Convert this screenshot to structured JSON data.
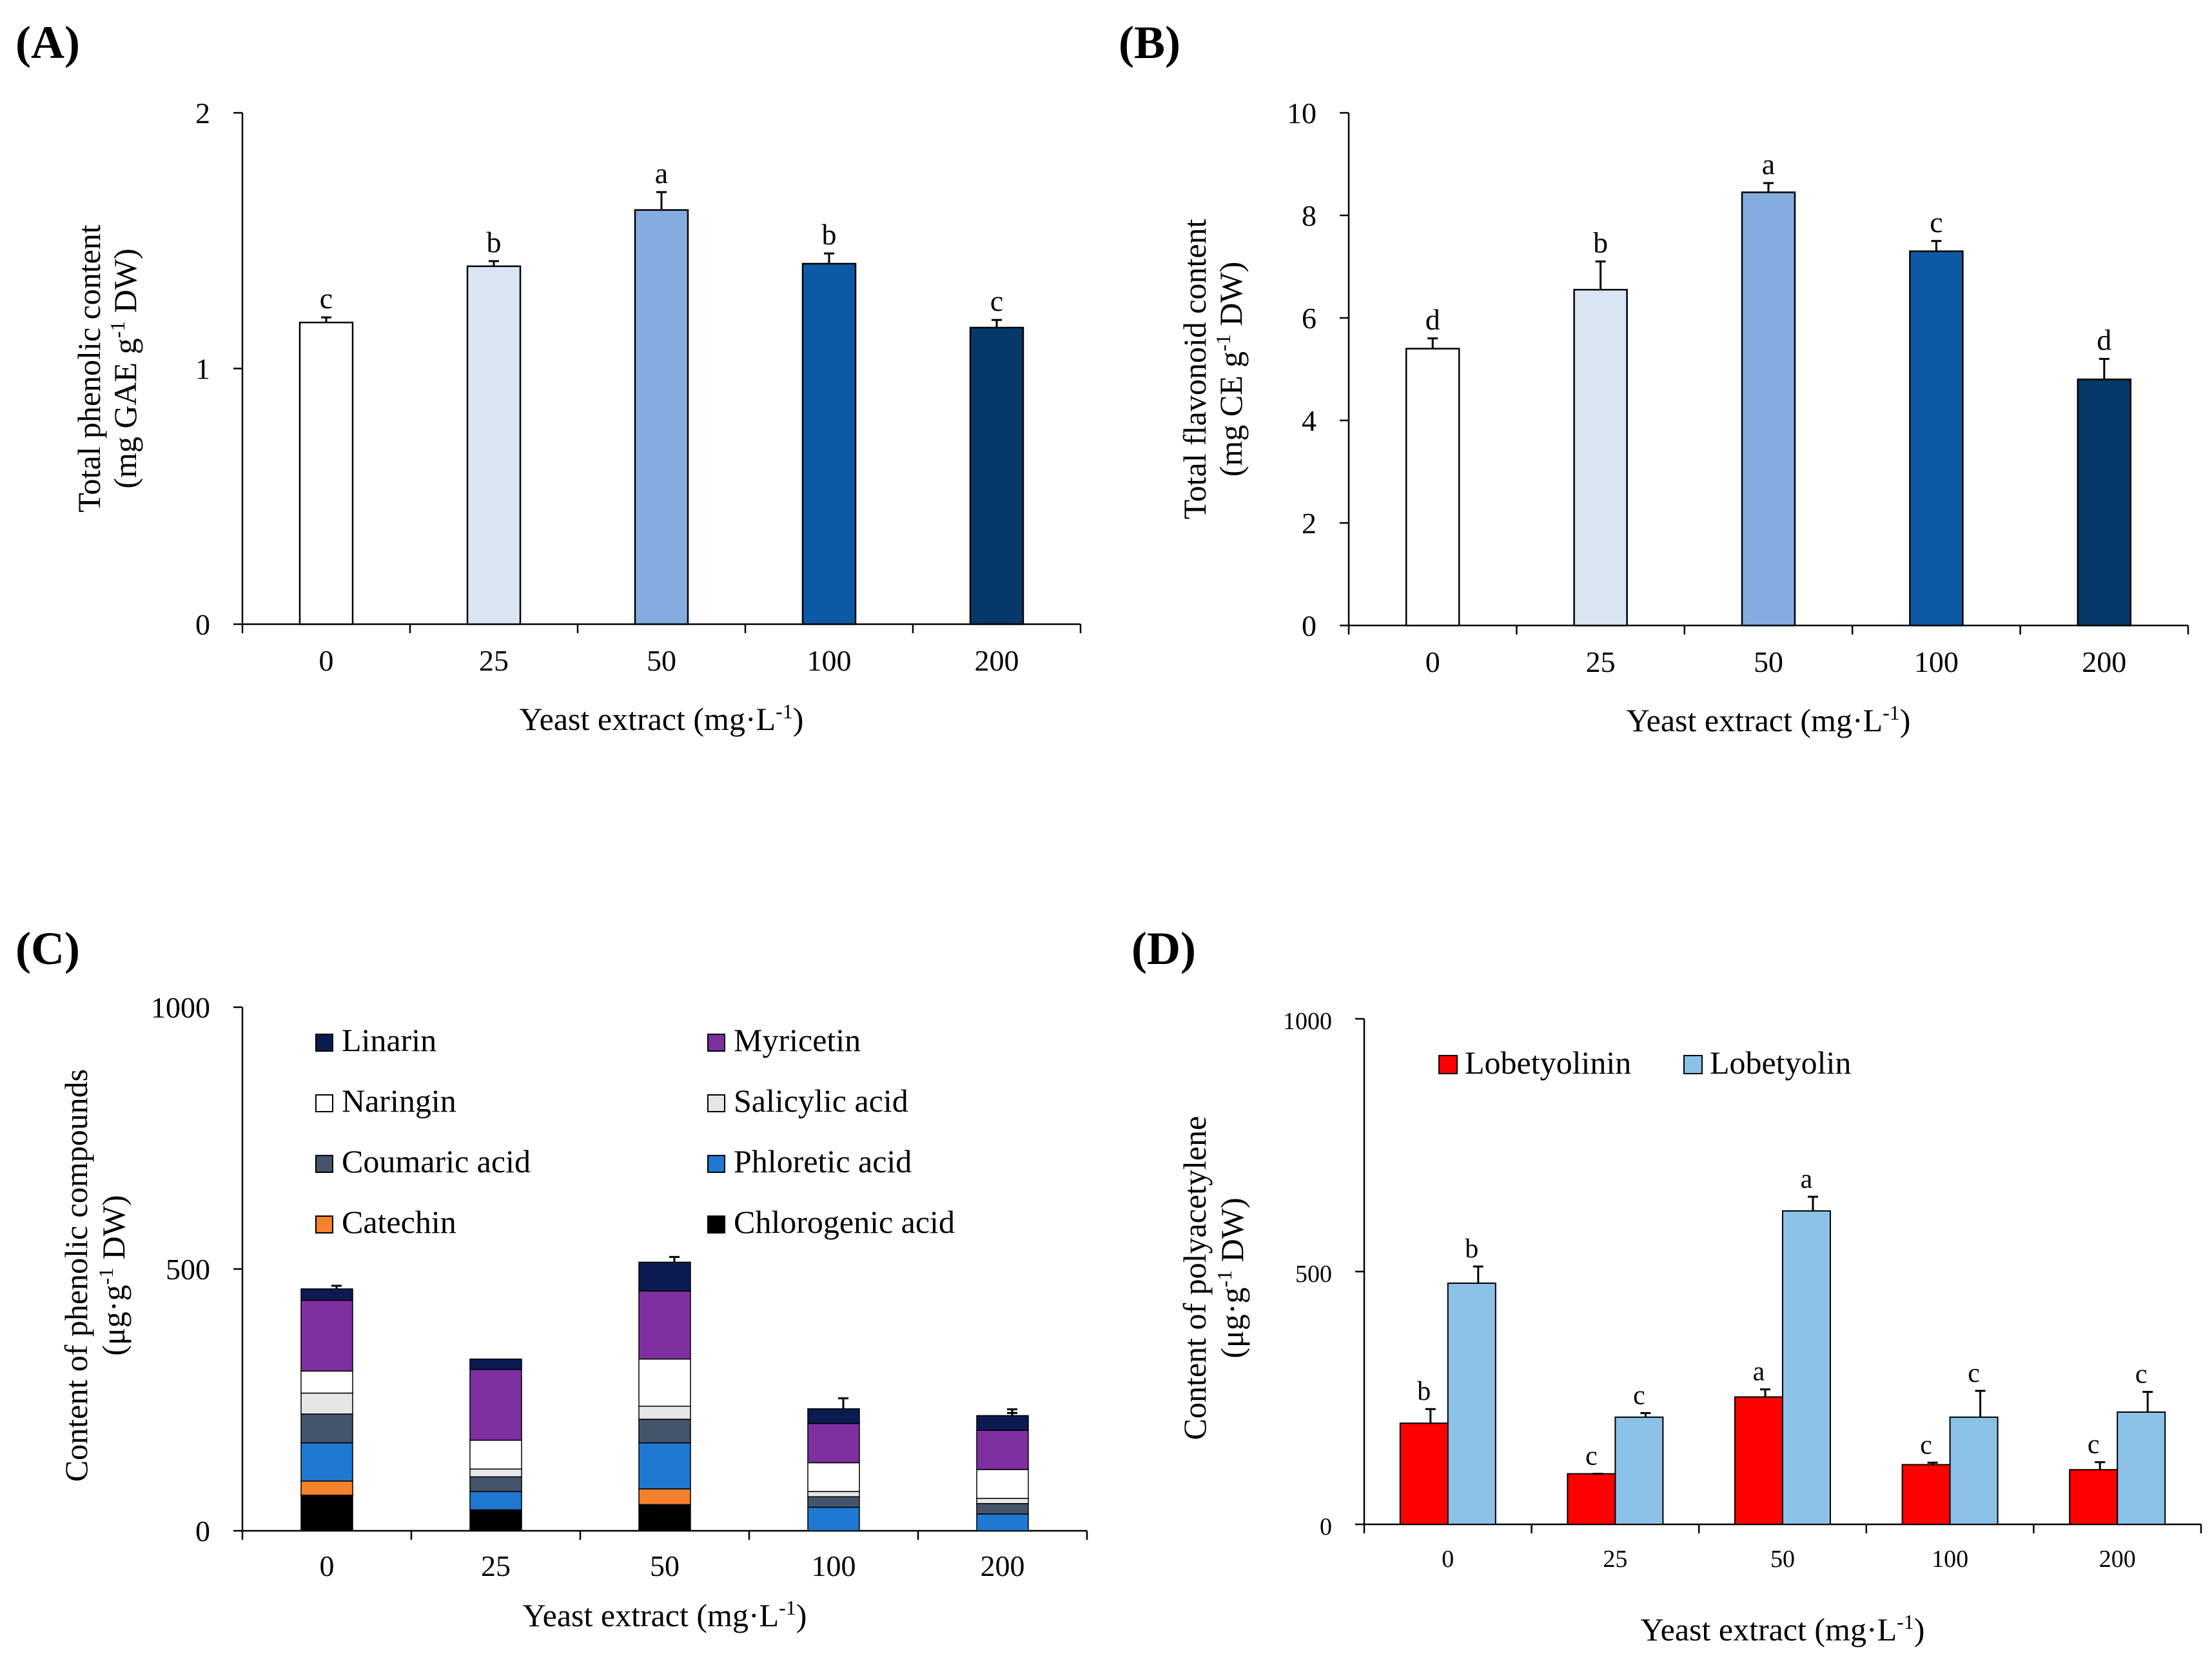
{
  "chart_data": [
    {
      "panel": "(A)",
      "type": "bar",
      "categories": [
        "0",
        "25",
        "50",
        "100",
        "200"
      ],
      "values": [
        1.18,
        1.4,
        1.62,
        1.41,
        1.16
      ],
      "errors": [
        0.02,
        0.02,
        0.07,
        0.04,
        0.03
      ],
      "letters": [
        "c",
        "b",
        "a",
        "b",
        "c"
      ],
      "colors": [
        "#ffffff",
        "#dae5f4",
        "#84acdf",
        "#0c5aa6",
        "#06386a"
      ],
      "ylabel_line1": "Total phenolic content",
      "ylabel_line2": {
        "prefix": "(mg GAE g",
        "sup": "-1",
        "suffix": " DW)"
      },
      "xlabel": {
        "prefix": "Yeast extract (mg·L",
        "sup": "-1",
        "suffix": ")"
      },
      "ylim": [
        0,
        2
      ],
      "yticks": [
        "0",
        "1",
        "2"
      ]
    },
    {
      "panel": "(B)",
      "type": "bar",
      "categories": [
        "0",
        "25",
        "50",
        "100",
        "200"
      ],
      "values": [
        5.4,
        6.55,
        8.45,
        7.3,
        4.8
      ],
      "errors": [
        0.2,
        0.55,
        0.18,
        0.2,
        0.4
      ],
      "letters": [
        "d",
        "b",
        "a",
        "c",
        "d"
      ],
      "colors": [
        "#ffffff",
        "#dae5f4",
        "#84acdf",
        "#0c5aa6",
        "#06386a"
      ],
      "ylabel_line1": "Total flavonoid content",
      "ylabel_line2": {
        "prefix": "(mg CE g",
        "sup": "-1",
        "suffix": " DW)"
      },
      "xlabel": {
        "prefix": "Yeast extract (mg·L",
        "sup": "-1",
        "suffix": ")"
      },
      "ylim": [
        0,
        10
      ],
      "yticks": [
        "0",
        "2",
        "4",
        "6",
        "8",
        "10"
      ]
    },
    {
      "panel": "(C)",
      "type": "bar",
      "stacked": true,
      "categories": [
        "0",
        "25",
        "50",
        "100",
        "200"
      ],
      "series": [
        {
          "name": "Chlorogenic acid",
          "color": "#000000",
          "values": [
            68,
            40,
            50,
            0,
            0
          ],
          "errors": [
            5,
            3,
            5,
            0,
            0
          ]
        },
        {
          "name": "Catechin",
          "color": "#f4812b",
          "values": [
            27,
            0,
            30,
            0,
            0
          ],
          "errors": [
            0,
            0,
            0,
            0,
            0
          ]
        },
        {
          "name": "Phloretic acid",
          "color": "#1f78d1",
          "values": [
            73,
            35,
            88,
            45,
            32
          ],
          "errors": [
            3,
            3,
            3,
            3,
            3
          ]
        },
        {
          "name": "Coumaric acid",
          "color": "#44546a",
          "values": [
            55,
            28,
            45,
            20,
            20
          ],
          "errors": [
            4,
            0,
            0,
            5,
            5
          ]
        },
        {
          "name": "Salicylic acid",
          "color": "#e7e6e6",
          "values": [
            40,
            15,
            25,
            10,
            10
          ],
          "errors": [
            10,
            0,
            0,
            5,
            10
          ]
        },
        {
          "name": "Naringin",
          "color": "#ffffff",
          "values": [
            42,
            55,
            90,
            55,
            55
          ],
          "errors": [
            0,
            15,
            30,
            0,
            0
          ]
        },
        {
          "name": "Myricetin",
          "color": "#7e2fa0",
          "values": [
            135,
            135,
            130,
            75,
            75
          ],
          "errors": [
            28,
            0,
            10,
            48,
            40
          ]
        },
        {
          "name": "Linarin",
          "color": "#0b1b52",
          "values": [
            22,
            20,
            55,
            28,
            28
          ],
          "errors": [
            0,
            0,
            10,
            0,
            5
          ]
        }
      ],
      "legend_order": [
        "Linarin",
        "Myricetin",
        "Naringin",
        "Salicylic acid",
        "Coumaric acid",
        "Phloretic acid",
        "Catechin",
        "Chlorogenic acid"
      ],
      "ylabel_line1": "Content of phenolic compounds",
      "ylabel_line2": {
        "prefix": "(μg·g",
        "sup": "-1",
        "suffix": " DW)"
      },
      "xlabel": {
        "prefix": "Yeast extract (mg·L",
        "sup": "-1",
        "suffix": ")"
      },
      "ylim": [
        0,
        1000
      ],
      "yticks": [
        "0",
        "500",
        "1000"
      ]
    },
    {
      "panel": "(D)",
      "type": "bar",
      "categories": [
        "0",
        "25",
        "50",
        "100",
        "200"
      ],
      "series": [
        {
          "name": "Lobetyolinin",
          "color": "#ff0000",
          "values": [
            200,
            100,
            252,
            118,
            108
          ],
          "errors": [
            28,
            0,
            15,
            4,
            15
          ],
          "letters": [
            "b",
            "c",
            "a",
            "c",
            "c"
          ]
        },
        {
          "name": "Lobetyolin",
          "color": "#8cc1e8",
          "values": [
            477,
            212,
            620,
            212,
            222
          ],
          "errors": [
            33,
            8,
            28,
            52,
            40
          ],
          "letters": [
            "b",
            "c",
            "a",
            "c",
            "c"
          ]
        }
      ],
      "ylabel_line1": "Content of polyacetylene",
      "ylabel_line2": {
        "prefix": "(μg·g",
        "sup": "-1",
        "suffix": " DW)"
      },
      "xlabel": {
        "prefix": "Yeast extract (mg·L",
        "sup": "-1",
        "suffix": ")"
      },
      "ylim": [
        0,
        1000
      ],
      "yticks": [
        "0",
        "500",
        "1000"
      ]
    }
  ]
}
